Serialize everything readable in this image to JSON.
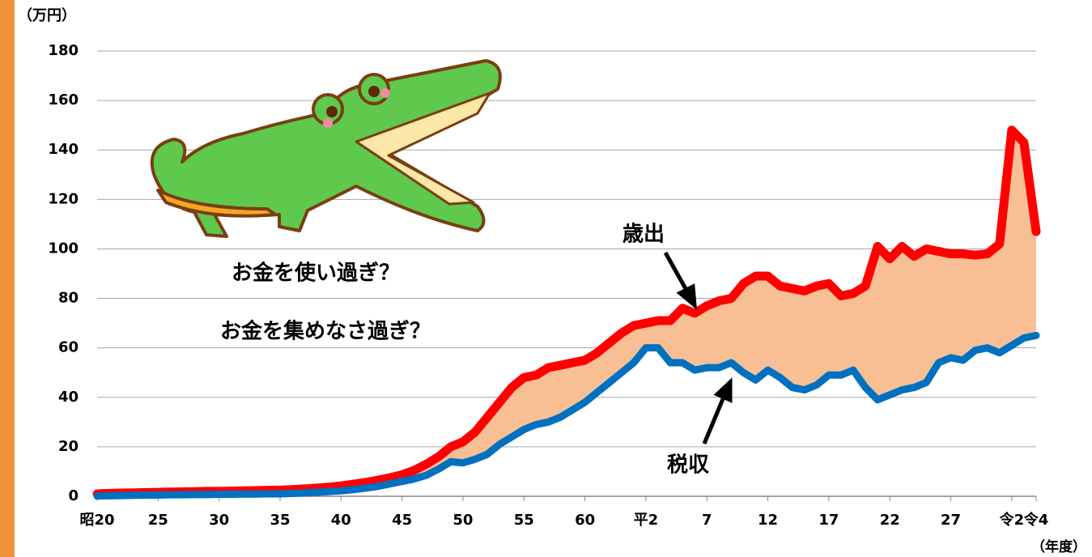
{
  "chart_data": {
    "type": "line",
    "unit_label": "（万円）",
    "x_unit_label": "（年度）",
    "annotations": [
      "お金を使い過ぎ？",
      "お金を集めなさ過ぎ？"
    ],
    "categories": [
      "昭20",
      null,
      null,
      null,
      null,
      "25",
      null,
      null,
      null,
      null,
      "30",
      null,
      null,
      null,
      null,
      "35",
      null,
      null,
      null,
      null,
      "40",
      null,
      null,
      null,
      null,
      "45",
      null,
      null,
      null,
      null,
      "50",
      null,
      null,
      null,
      null,
      "55",
      null,
      null,
      null,
      null,
      "60",
      null,
      null,
      null,
      null,
      "平2",
      null,
      null,
      null,
      null,
      "7",
      null,
      null,
      null,
      null,
      "12",
      null,
      null,
      null,
      null,
      "17",
      null,
      null,
      null,
      null,
      "22",
      null,
      null,
      null,
      null,
      "27",
      null,
      null,
      null,
      null,
      "令2",
      null,
      "令4"
    ],
    "series": [
      {
        "name": "歳出",
        "color": "#ff0000",
        "values": [
          1,
          1.2,
          1.3,
          1.4,
          1.5,
          1.6,
          1.7,
          1.8,
          1.9,
          2,
          2,
          2.1,
          2.2,
          2.3,
          2.4,
          2.5,
          2.7,
          3,
          3.3,
          3.7,
          4.2,
          4.9,
          5.6,
          6.5,
          7.5,
          8.7,
          10.5,
          13,
          16,
          20,
          22,
          26,
          32,
          38,
          44,
          48,
          49,
          52,
          53,
          54,
          55,
          58,
          62,
          66,
          69,
          70,
          71,
          71,
          76,
          74,
          77,
          79,
          80,
          86,
          89,
          89,
          85,
          84,
          83,
          85,
          86,
          81,
          82,
          85,
          101,
          96,
          101,
          97,
          100,
          99,
          98,
          98,
          97.5,
          98,
          102,
          148,
          143,
          107
        ]
      },
      {
        "name": "税収",
        "color": "#0070c0",
        "values": [
          0.1,
          0.2,
          0.3,
          0.4,
          0.5,
          0.5,
          0.6,
          0.6,
          0.7,
          0.7,
          0.8,
          0.8,
          0.9,
          0.9,
          1,
          1,
          1.2,
          1.4,
          1.6,
          1.9,
          2.2,
          2.7,
          3.3,
          4,
          5,
          6,
          7,
          8.5,
          11,
          14,
          13.5,
          15,
          17,
          21,
          24,
          27,
          29,
          30,
          32,
          35,
          38,
          42,
          46,
          50,
          54,
          60,
          60,
          54,
          54,
          51,
          52,
          52,
          54,
          50,
          47,
          51,
          48,
          44,
          43,
          45,
          49,
          49,
          51,
          44,
          39,
          41,
          43,
          44,
          46,
          54,
          56,
          55,
          59,
          60,
          58,
          61,
          64,
          65
        ]
      }
    ],
    "fill_between_color": "#f8bf94",
    "ylim": [
      0,
      180
    ],
    "yticks": [
      0,
      20,
      40,
      60,
      80,
      100,
      120,
      140,
      160,
      180
    ],
    "grid": true
  }
}
